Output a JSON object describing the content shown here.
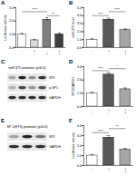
{
  "chart_data": [
    {
      "type": "bar",
      "title": "A",
      "y_label": "Luciferase activity",
      "categories": [
        "-\n-",
        "+\n-",
        "-\n+",
        "+\n+"
      ],
      "values": [
        1.0,
        0.55,
        2.1,
        1.0
      ],
      "errors": [
        0.08,
        0.06,
        0.15,
        0.1
      ],
      "colors": [
        "#ffffff",
        "#d9d9d9",
        "#7f7f7f",
        "#404040"
      ],
      "ylim": [
        0,
        3
      ],
      "yticks": [
        0,
        1,
        2,
        3
      ],
      "significance": [
        {
          "from": 0,
          "to": 2,
          "y": 2.7,
          "label": "****"
        },
        {
          "from": 2,
          "to": 3,
          "y": 2.4,
          "label": "**"
        }
      ]
    },
    {
      "type": "bar",
      "title": "B",
      "y_label": "miR-375 level",
      "categories": [
        "-\n-",
        "+\n-",
        "+\n+"
      ],
      "values": [
        1.0,
        3.5,
        2.2
      ],
      "errors": [
        0.1,
        0.2,
        0.15
      ],
      "colors": [
        "#ffffff",
        "#595959",
        "#a6a6a6"
      ],
      "ylim": [
        0,
        5
      ],
      "yticks": [
        0,
        1,
        2,
        3,
        4,
        5
      ],
      "significance": [
        {
          "from": 0,
          "to": 1,
          "y": 4.0,
          "label": "****"
        },
        {
          "from": 1,
          "to": 2,
          "y": 4.5,
          "label": "****"
        }
      ]
    },
    {
      "type": "bar",
      "title": "D",
      "y_label": "SP1/GAPDH",
      "categories": [
        "-\n-",
        "+\n-",
        "+\n+"
      ],
      "values": [
        1.0,
        2.4,
        1.3
      ],
      "errors": [
        0.08,
        0.15,
        0.1
      ],
      "colors": [
        "#ffffff",
        "#595959",
        "#a6a6a6"
      ],
      "ylim": [
        0,
        3
      ],
      "yticks": [
        0,
        1,
        2,
        3
      ],
      "significance": [
        {
          "from": 0,
          "to": 1,
          "y": 2.7,
          "label": "****"
        },
        {
          "from": 1,
          "to": 2,
          "y": 2.85,
          "label": "*"
        }
      ]
    },
    {
      "type": "bar",
      "title": "F",
      "y_label": "Luciferase activity",
      "categories": [
        "-\n-",
        "+\n-",
        "+\n+"
      ],
      "values": [
        1.0,
        2.8,
        1.6
      ],
      "errors": [
        0.1,
        0.2,
        0.12
      ],
      "colors": [
        "#ffffff",
        "#595959",
        "#a6a6a6"
      ],
      "ylim": [
        0,
        4
      ],
      "yticks": [
        0,
        1,
        2,
        3,
        4
      ],
      "significance": [
        {
          "from": 0,
          "to": 1,
          "y": 3.3,
          "label": "****"
        },
        {
          "from": 1,
          "to": 2,
          "y": 3.7,
          "label": "**"
        }
      ]
    }
  ],
  "blots": [
    {
      "title": "C",
      "header": "miR-375 promoter (pGL3)",
      "rows": [
        {
          "label": "SP1",
          "intensity": [
            0.3,
            0.85,
            0.4,
            0.8
          ]
        },
        {
          "label": "p-SP1",
          "intensity": [
            0.25,
            0.7,
            0.35,
            0.65
          ]
        },
        {
          "label": "GAPDH",
          "intensity": [
            0.8,
            0.8,
            0.8,
            0.8
          ]
        }
      ]
    },
    {
      "title": "E",
      "header": "SP-1(HTS) promoter (pGL3)",
      "rows": [
        {
          "label": "SP1",
          "intensity": [
            0.3,
            0.85,
            0.5
          ]
        },
        {
          "label": "GAPDH",
          "intensity": [
            0.8,
            0.8,
            0.8
          ]
        }
      ]
    }
  ]
}
